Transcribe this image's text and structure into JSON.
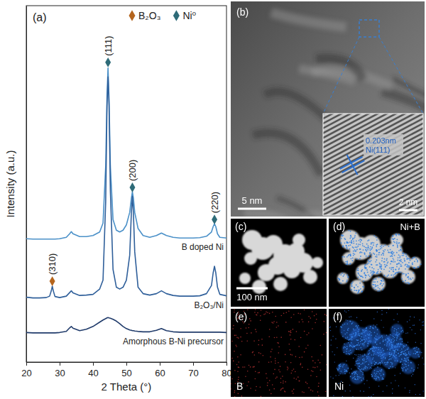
{
  "chart_data": {
    "type": "line",
    "panel_label": "(a)",
    "x_label": "2 Theta (°)",
    "y_label": "Intensity (a.u.)",
    "xlim": [
      20,
      80
    ],
    "xticks": [
      20,
      30,
      40,
      50,
      60,
      70,
      80
    ],
    "ylim": [
      0,
      100
    ],
    "tick_labels": "x",
    "grid": false,
    "legend": "top right",
    "phases": [
      {
        "name": "B₂O₃",
        "color": "#b5651d"
      },
      {
        "name": "Ni⁰",
        "color": "#2e6b78"
      }
    ],
    "annotations": [
      {
        "text": "(111)",
        "x": 44.5,
        "y": 84.1,
        "color": "#2e6b78"
      },
      {
        "text": "(200)",
        "x": 51.8,
        "y": 49.0,
        "color": "#2e6b78"
      },
      {
        "text": "(220)",
        "x": 76.4,
        "y": 40.0,
        "color": "#2e6b78"
      },
      {
        "text": "(310)",
        "x": 27.8,
        "y": 22.7,
        "color": "#b5651d"
      }
    ],
    "x": [
      20,
      22,
      24,
      26,
      27,
      27.5,
      27.8,
      28.1,
      28.6,
      30,
      32,
      33,
      33.5,
      34,
      36,
      38,
      40,
      42,
      43,
      43.8,
      44.2,
      44.5,
      44.8,
      45.2,
      46,
      47,
      48,
      49,
      50,
      51,
      51.5,
      51.8,
      52.1,
      52.5,
      53.5,
      55,
      57,
      59,
      60.5,
      62,
      64,
      66,
      68,
      70,
      72,
      74,
      75.5,
      76,
      76.4,
      76.8,
      77.3,
      78,
      80
    ],
    "series": [
      {
        "name": "B doped Ni",
        "color": "#4a90c8",
        "values": [
          34.6,
          34.5,
          34.5,
          34.5,
          34.5,
          34.5,
          34.5,
          34.5,
          34.5,
          34.6,
          35,
          36,
          36.6,
          36,
          35.2,
          35.2,
          35.5,
          36.5,
          39,
          55,
          75,
          82.5,
          74,
          55,
          40,
          37,
          36.5,
          37,
          38.5,
          42,
          46,
          47.8,
          46,
          42,
          37.5,
          35.5,
          35,
          35.5,
          36.2,
          35.5,
          35,
          34.8,
          34.8,
          34.8,
          34.9,
          35.3,
          36.5,
          38,
          38.8,
          38,
          36,
          35,
          34.8
        ]
      },
      {
        "name": "B₂O₃/Ni",
        "color": "#2f5f9a",
        "values": [
          18.2,
          18,
          18,
          18.1,
          18.5,
          20,
          21.3,
          20,
          18.4,
          18.1,
          18.5,
          19.5,
          20,
          19.4,
          18.7,
          18.8,
          19,
          20.5,
          23,
          45,
          72,
          80,
          72,
          48,
          26,
          21,
          20.5,
          21,
          23,
          30,
          42,
          46.5,
          42,
          31,
          21,
          19.2,
          18.8,
          19.2,
          20,
          19.2,
          18.7,
          18.5,
          18.5,
          18.5,
          18.6,
          19.2,
          21.5,
          25,
          26.9,
          25,
          21,
          19,
          18.6
        ]
      },
      {
        "name": "Amorphous B-Ni precursor",
        "color": "#1f3a6a",
        "values": [
          8.3,
          8.2,
          8.2,
          8.2,
          8.2,
          8.2,
          8.2,
          8.2,
          8.2,
          8.3,
          8.6,
          9.6,
          10,
          9.5,
          8.8,
          9.2,
          10,
          11.2,
          11.8,
          12.2,
          12.4,
          12.5,
          12.4,
          12.3,
          12,
          11.5,
          10.8,
          10,
          9.4,
          9,
          8.9,
          8.8,
          8.8,
          8.7,
          8.6,
          8.5,
          8.5,
          8.9,
          9.4,
          8.8,
          8.5,
          8.4,
          8.4,
          8.4,
          8.4,
          8.4,
          8.4,
          8.4,
          8.4,
          8.4,
          8.4,
          8.4,
          8.3
        ]
      }
    ]
  },
  "images": [
    {
      "label": "(b)",
      "scale_bar": "5 nm",
      "inset": {
        "scale_bar": "2 nm",
        "spacing": "0.203nm",
        "plane": "Ni(111)"
      }
    },
    {
      "label": "(c)",
      "scale_bar": "100 nm"
    },
    {
      "label": "(d)",
      "caption": "Ni+B"
    },
    {
      "label": "(e)",
      "caption": "B"
    },
    {
      "label": "(f)",
      "caption": "Ni"
    }
  ]
}
